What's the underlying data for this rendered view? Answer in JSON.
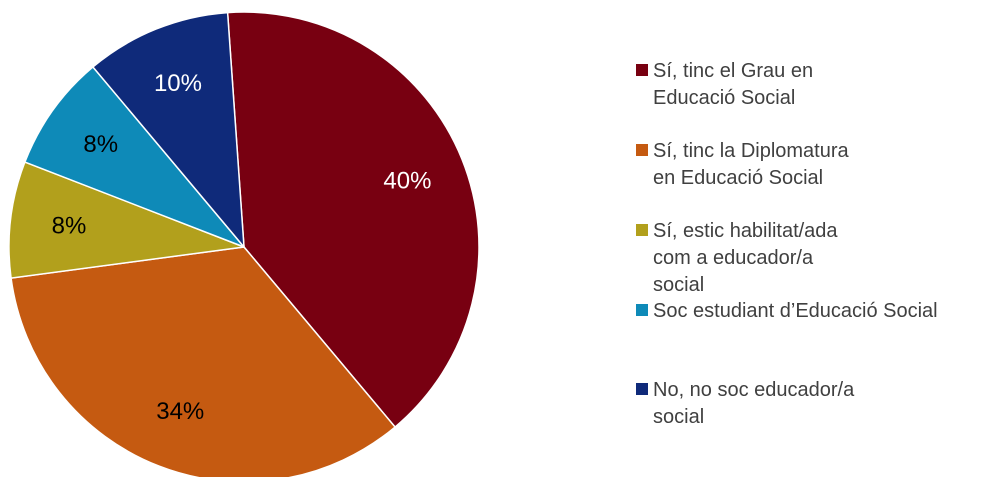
{
  "chart_data": {
    "type": "pie",
    "categories": [
      "Sí, tinc el Grau en Educació Social",
      "Sí, tinc la Diplomatura en Educació Social",
      "Sí, estic habilitat/ada com a educador/a social",
      "Soc estudiant d’Educació Social",
      "No, no soc educador/a social"
    ],
    "values": [
      40,
      34,
      8,
      8,
      10
    ],
    "data_labels": [
      "40%",
      "34%",
      "8%",
      "8%",
      "10%"
    ],
    "colors": [
      "#780011",
      "#C55A11",
      "#B2A01C",
      "#0E8AB8",
      "#0F2A7A"
    ],
    "label_colors": [
      "#ffffff",
      "#000000",
      "#000000",
      "#000000",
      "#ffffff"
    ],
    "start_angle_deg": -4,
    "direction": "clockwise",
    "legend_position": "right",
    "title": ""
  }
}
